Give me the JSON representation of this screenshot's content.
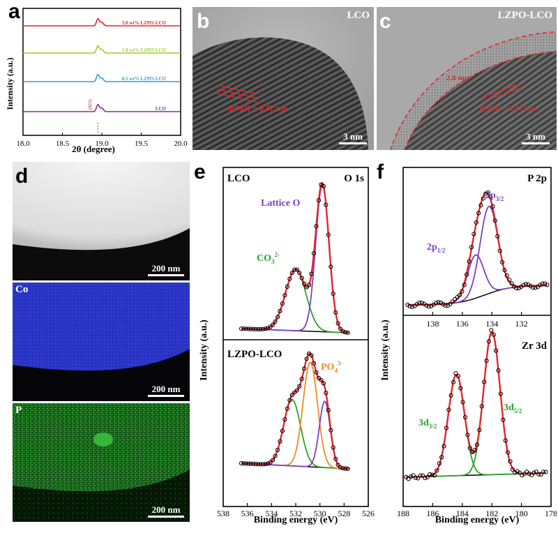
{
  "panels": {
    "a": {
      "label": "a",
      "chart_data": {
        "type": "line",
        "xlabel": "2θ (degree)",
        "ylabel": "Intensity (a.u.)",
        "xlim": [
          18.0,
          20.0
        ],
        "xticks": [
          "18.0",
          "18.5",
          "19.0",
          "19.5",
          "20.0"
        ],
        "peak_label": "(003)",
        "series": [
          {
            "name": "3.0 wt% LZPO-LCO",
            "color": "#e3262c",
            "peak_x": 18.95
          },
          {
            "name": "1.0 wt% LZPO-LCO",
            "color": "#9ccd28",
            "peak_x": 18.95
          },
          {
            "name": "0.5 wt% LZPO-LCO",
            "color": "#2f9fd8",
            "peak_x": 18.95
          },
          {
            "name": "LCO",
            "color": "#8b2aa0",
            "peak_x": 18.95
          }
        ]
      }
    },
    "b": {
      "label": "b",
      "title": "LCO",
      "annotation": "d(003) = 0.47 nm",
      "scale": "3 nm"
    },
    "c": {
      "label": "c",
      "title": "LZPO-LCO",
      "annotation_thickness": "2.8 nm",
      "annotation": "d(003) = 0.47 nm",
      "scale": "3 nm"
    },
    "d": {
      "label": "d",
      "tiles": [
        {
          "element": "",
          "scale": "200 nm"
        },
        {
          "element": "Co",
          "scale": "200 nm"
        },
        {
          "element": "P",
          "scale": "200 nm"
        }
      ]
    },
    "e": {
      "label": "e",
      "chart_data": {
        "type": "line",
        "xlabel": "Binding energy (eV)",
        "ylabel": "Intensity (a.u.)",
        "xlim": [
          538,
          526
        ],
        "xticks": [
          "538",
          "536",
          "534",
          "532",
          "530",
          "528",
          "526"
        ],
        "top": {
          "sample": "LCO",
          "core": "O 1s",
          "peaks": [
            {
              "name": "Lattice O",
              "center": 529.8,
              "color": "#7a3fc8"
            },
            {
              "name": "CO3 2-",
              "center": 531.9,
              "color": "#2aa02a"
            }
          ]
        },
        "bottom": {
          "sample": "LZPO-LCO",
          "peaks": [
            {
              "name": "PO4 3-",
              "center": 530.8,
              "color": "#f08a1e"
            },
            {
              "name": "CO3 2-",
              "center": 532.1,
              "color": "#2aa02a"
            },
            {
              "name": "Lattice O",
              "center": 529.6,
              "color": "#7a3fc8"
            }
          ]
        }
      },
      "label_lattice": "Lattice O",
      "label_co3": "CO",
      "label_co3_sub": "3",
      "label_co3_sup": "2-",
      "label_po4": "PO",
      "label_po4_sub": "4",
      "label_po4_sup": "3-"
    },
    "f": {
      "label": "f",
      "chart_data": {
        "type": "line",
        "xlabel": "Binding energy (eV)",
        "ylabel": "Intensity (a.u.)",
        "top": {
          "core": "P 2p",
          "xlim": [
            140,
            130
          ],
          "xticks": [
            "138",
            "136",
            "134",
            "132"
          ],
          "peaks": [
            {
              "name": "2p3/2",
              "center": 134.2
            },
            {
              "name": "2p1/2",
              "center": 135.1
            }
          ]
        },
        "bottom": {
          "core": "Zr 3d",
          "xlim": [
            188,
            178
          ],
          "xticks": [
            "188",
            "186",
            "184",
            "182",
            "180",
            "178"
          ],
          "peaks": [
            {
              "name": "3d5/2",
              "center": 182.0
            },
            {
              "name": "3d3/2",
              "center": 184.4
            }
          ]
        }
      },
      "label_p32": "2p",
      "label_p32_sub": "3/2",
      "label_p12": "2p",
      "label_p12_sub": "1/2",
      "label_d32": "3d",
      "label_d32_sub": "3/2",
      "label_d52": "3d",
      "label_d52_sub": "5/2"
    }
  },
  "colors": {
    "fit_red": "#e3262c",
    "purple": "#7a3fc8",
    "green": "#2aa02a",
    "orange": "#f08a1e",
    "co_map": "#2a35c8",
    "p_map": "#2fa032"
  }
}
